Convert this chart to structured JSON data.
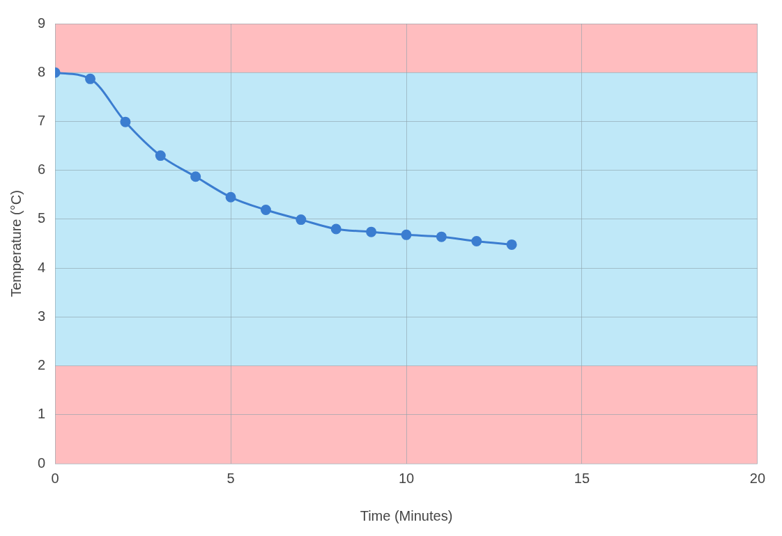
{
  "chart_data": {
    "type": "line",
    "xlabel": "Time (Minutes)",
    "ylabel": "Temperature (°C)",
    "x": [
      0,
      1,
      2,
      3,
      4,
      5,
      6,
      7,
      8,
      9,
      10,
      11,
      12,
      13
    ],
    "series": [
      {
        "color": "#3b7dd0",
        "values": [
          8.0,
          7.87,
          6.99,
          6.3,
          5.87,
          5.45,
          5.19,
          4.99,
          4.8,
          4.74,
          4.68,
          4.64,
          4.55,
          4.48
        ]
      }
    ],
    "xlim": [
      0,
      20
    ],
    "xticks": [
      0,
      5,
      10,
      15,
      20
    ],
    "ylim": [
      0,
      9
    ],
    "yticks": [
      0,
      1,
      2,
      3,
      4,
      5,
      6,
      7,
      8,
      9
    ],
    "bands": [
      {
        "axis": "y",
        "from": 8,
        "to": 9,
        "color": "#ffbdbf"
      },
      {
        "axis": "y",
        "from": 2,
        "to": 8,
        "color": "#bfe8f8"
      },
      {
        "axis": "y",
        "from": 0,
        "to": 2,
        "color": "#ffbdbf"
      }
    ],
    "grid": true,
    "legend": false,
    "marker": "circle",
    "line_style": "solid"
  }
}
